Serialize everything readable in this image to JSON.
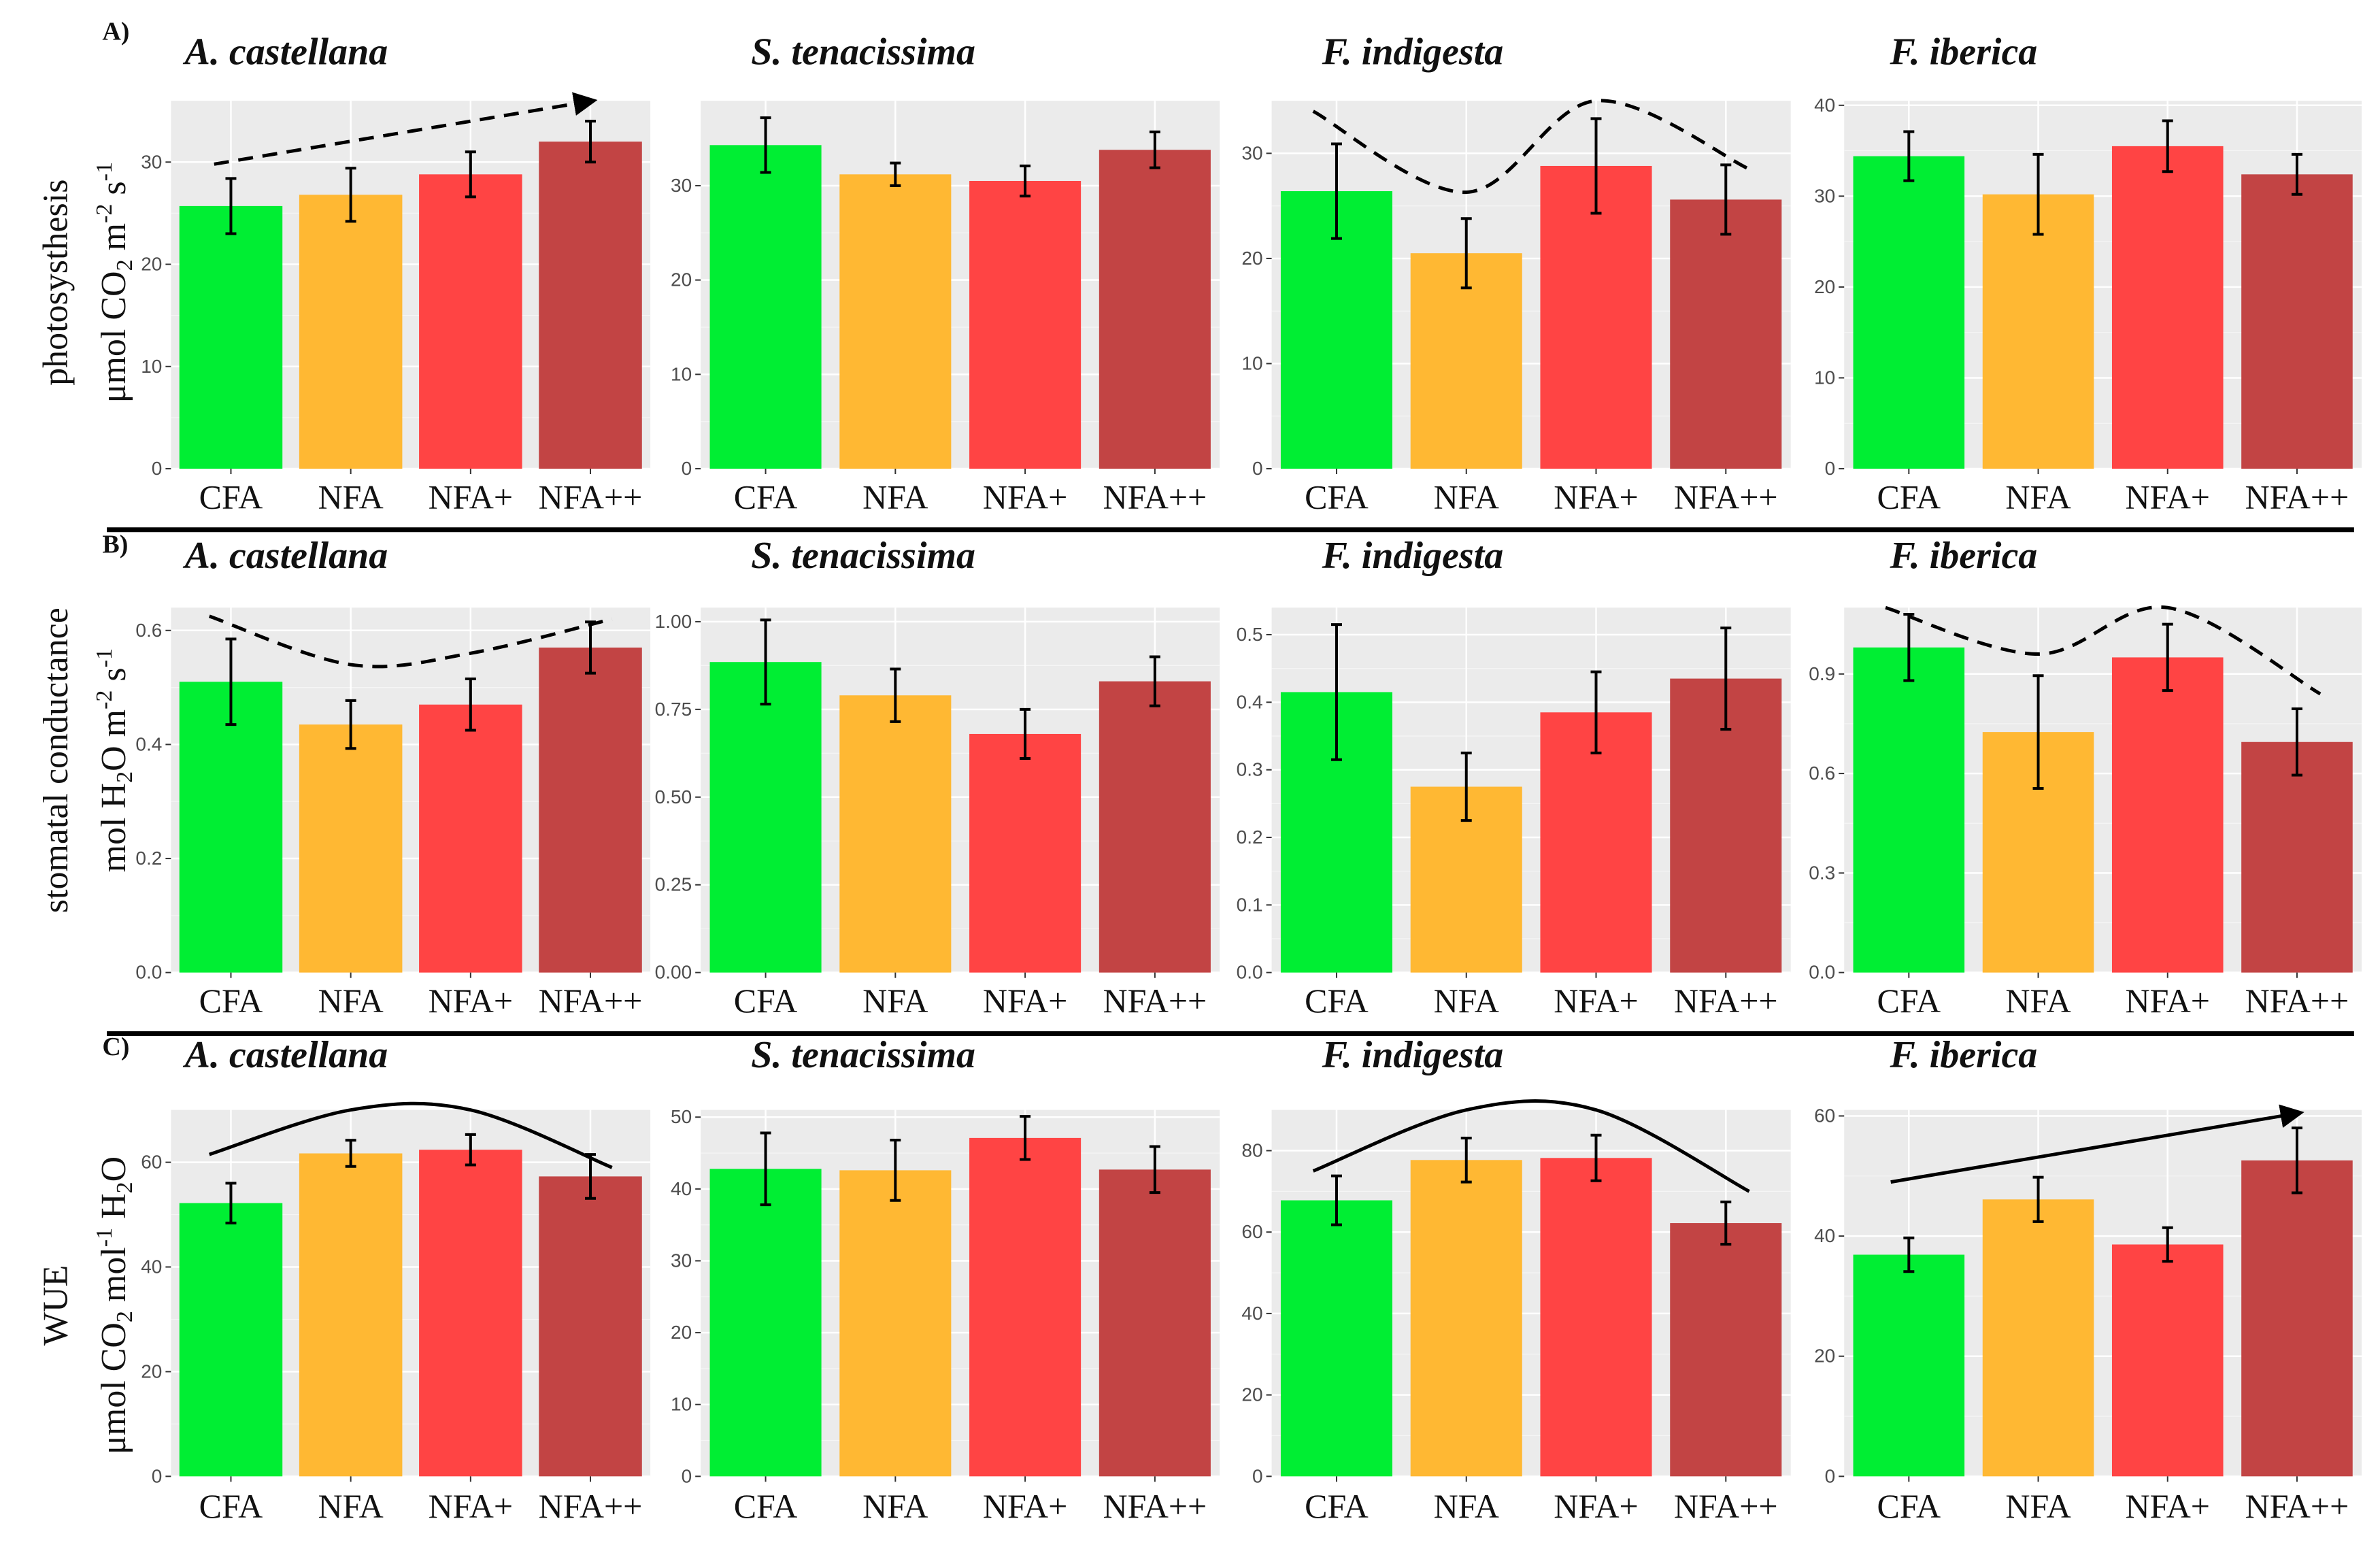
{
  "figure": {
    "categories": [
      "CFA",
      "NFA",
      "NFA+",
      "NFA++"
    ],
    "colors": [
      "#00ee33",
      "#ffb833",
      "#ff4444",
      "#c24444"
    ],
    "panel_labels": [
      "A)",
      "B)",
      "C)"
    ],
    "row_labels": [
      {
        "line1": "photosysthesis",
        "line2_parts": [
          "μmol CO",
          "2",
          " m",
          "-2",
          " s",
          "-1"
        ]
      },
      {
        "line1": "stomatal conductance",
        "line2_parts": [
          "mol H",
          "2",
          "O m",
          "-2",
          " s",
          "-1"
        ]
      },
      {
        "line1": "WUE",
        "line2_parts": [
          "μmol CO",
          "2",
          " mol",
          "-1",
          " H",
          "2",
          "O"
        ]
      }
    ]
  },
  "chart_data": [
    {
      "row": 0,
      "col": 0,
      "type": "bar",
      "title": "A. castellana",
      "categories": [
        "CFA",
        "NFA",
        "NFA+",
        "NFA++"
      ],
      "values": [
        25.7,
        26.8,
        28.8,
        32.0
      ],
      "errors": [
        2.7,
        2.6,
        2.2,
        2.0
      ],
      "ylim": [
        0,
        36
      ],
      "yticks": [
        "0",
        "10",
        "20",
        "30"
      ],
      "trend": {
        "type": "arrow",
        "style": "dashed",
        "y_start": 29.8,
        "y_end": 36.0
      }
    },
    {
      "row": 0,
      "col": 1,
      "type": "bar",
      "title": "S. tenacissima",
      "categories": [
        "CFA",
        "NFA",
        "NFA+",
        "NFA++"
      ],
      "values": [
        34.3,
        31.2,
        30.5,
        33.8
      ],
      "errors": [
        2.9,
        1.2,
        1.6,
        1.9
      ],
      "ylim": [
        0,
        39
      ],
      "yticks": [
        "0",
        "10",
        "20",
        "30"
      ]
    },
    {
      "row": 0,
      "col": 2,
      "type": "bar",
      "title": "F. indigesta",
      "categories": [
        "CFA",
        "NFA",
        "NFA+",
        "NFA++"
      ],
      "values": [
        26.4,
        20.5,
        28.8,
        25.6
      ],
      "errors": [
        4.5,
        3.3,
        4.5,
        3.3
      ],
      "ylim": [
        0,
        35
      ],
      "yticks": [
        "0",
        "10",
        "20",
        "30"
      ],
      "trend": {
        "type": "curve",
        "style": "dashed",
        "y": [
          34.0,
          26.3,
          35.0,
          28.5
        ]
      }
    },
    {
      "row": 0,
      "col": 3,
      "type": "bar",
      "title": "F. iberica",
      "categories": [
        "CFA",
        "NFA",
        "NFA+",
        "NFA++"
      ],
      "values": [
        34.4,
        30.2,
        35.5,
        32.4
      ],
      "errors": [
        2.7,
        4.4,
        2.8,
        2.2
      ],
      "ylim": [
        0,
        40.5
      ],
      "yticks": [
        "0",
        "10",
        "20",
        "30",
        "40"
      ]
    },
    {
      "row": 1,
      "col": 0,
      "type": "bar",
      "title": "A. castellana",
      "categories": [
        "CFA",
        "NFA",
        "NFA+",
        "NFA++"
      ],
      "values": [
        0.51,
        0.435,
        0.47,
        0.57
      ],
      "errors": [
        0.075,
        0.042,
        0.045,
        0.045
      ],
      "ylim": [
        0,
        0.64
      ],
      "yticks": [
        "0.0",
        "0.2",
        "0.4",
        "0.6"
      ],
      "trend": {
        "type": "curve",
        "style": "dashed",
        "y": [
          0.625,
          0.54,
          0.56,
          0.62
        ]
      }
    },
    {
      "row": 1,
      "col": 1,
      "type": "bar",
      "title": "S. tenacissima",
      "categories": [
        "CFA",
        "NFA",
        "NFA+",
        "NFA++"
      ],
      "values": [
        0.885,
        0.79,
        0.68,
        0.83
      ],
      "errors": [
        0.12,
        0.075,
        0.07,
        0.07
      ],
      "ylim": [
        0,
        1.04
      ],
      "yticks": [
        "0.00",
        "0.25",
        "0.50",
        "0.75",
        "1.00"
      ]
    },
    {
      "row": 1,
      "col": 2,
      "type": "bar",
      "title": "F. indigesta",
      "categories": [
        "CFA",
        "NFA",
        "NFA+",
        "NFA++"
      ],
      "values": [
        0.415,
        0.275,
        0.385,
        0.435
      ],
      "errors": [
        0.1,
        0.05,
        0.06,
        0.075
      ],
      "ylim": [
        0,
        0.54
      ],
      "yticks": [
        "0.0",
        "0.1",
        "0.2",
        "0.3",
        "0.4",
        "0.5"
      ]
    },
    {
      "row": 1,
      "col": 3,
      "type": "bar",
      "title": "F. iberica",
      "categories": [
        "CFA",
        "NFA",
        "NFA+",
        "NFA++"
      ],
      "values": [
        0.98,
        0.725,
        0.95,
        0.695
      ],
      "errors": [
        0.1,
        0.17,
        0.1,
        0.1
      ],
      "ylim": [
        0,
        1.1
      ],
      "yticks": [
        "0.0",
        "0.3",
        "0.6",
        "0.9"
      ],
      "trend": {
        "type": "curve",
        "style": "dashed",
        "y": [
          1.1,
          0.96,
          1.1,
          0.84
        ]
      }
    },
    {
      "row": 2,
      "col": 0,
      "type": "bar",
      "title": "A. castellana",
      "categories": [
        "CFA",
        "NFA",
        "NFA+",
        "NFA++"
      ],
      "values": [
        52.2,
        61.7,
        62.4,
        57.3
      ],
      "errors": [
        3.8,
        2.5,
        2.9,
        4.2
      ],
      "ylim": [
        0,
        70
      ],
      "yticks": [
        "0",
        "20",
        "40",
        "60"
      ],
      "trend": {
        "type": "curve",
        "style": "solid",
        "y": [
          61.5,
          70.0,
          70.0,
          59.0
        ]
      }
    },
    {
      "row": 2,
      "col": 1,
      "type": "bar",
      "title": "S. tenacissima",
      "categories": [
        "CFA",
        "NFA",
        "NFA+",
        "NFA++"
      ],
      "values": [
        42.8,
        42.6,
        47.1,
        42.7
      ],
      "errors": [
        5.0,
        4.2,
        3.0,
        3.2
      ],
      "ylim": [
        0,
        51
      ],
      "yticks": [
        "0",
        "10",
        "20",
        "30",
        "40",
        "50"
      ]
    },
    {
      "row": 2,
      "col": 2,
      "type": "bar",
      "title": "F. indigesta",
      "categories": [
        "CFA",
        "NFA",
        "NFA+",
        "NFA++"
      ],
      "values": [
        67.8,
        77.7,
        78.2,
        62.2
      ],
      "errors": [
        6.0,
        5.4,
        5.6,
        5.2
      ],
      "ylim": [
        0,
        90
      ],
      "yticks": [
        "0",
        "20",
        "40",
        "60",
        "80"
      ],
      "trend": {
        "type": "curve",
        "style": "solid",
        "y": [
          75.0,
          90.0,
          90.0,
          70.0
        ]
      }
    },
    {
      "row": 2,
      "col": 3,
      "type": "bar",
      "title": "F. iberica",
      "categories": [
        "CFA",
        "NFA",
        "NFA+",
        "NFA++"
      ],
      "values": [
        36.9,
        46.1,
        38.6,
        52.6
      ],
      "errors": [
        2.8,
        3.7,
        2.8,
        5.4
      ],
      "ylim": [
        0,
        61
      ],
      "yticks": [
        "0",
        "20",
        "40",
        "60"
      ],
      "trend": {
        "type": "arrow",
        "style": "solid",
        "y_start": 49.0,
        "y_end": 60.5
      }
    }
  ]
}
